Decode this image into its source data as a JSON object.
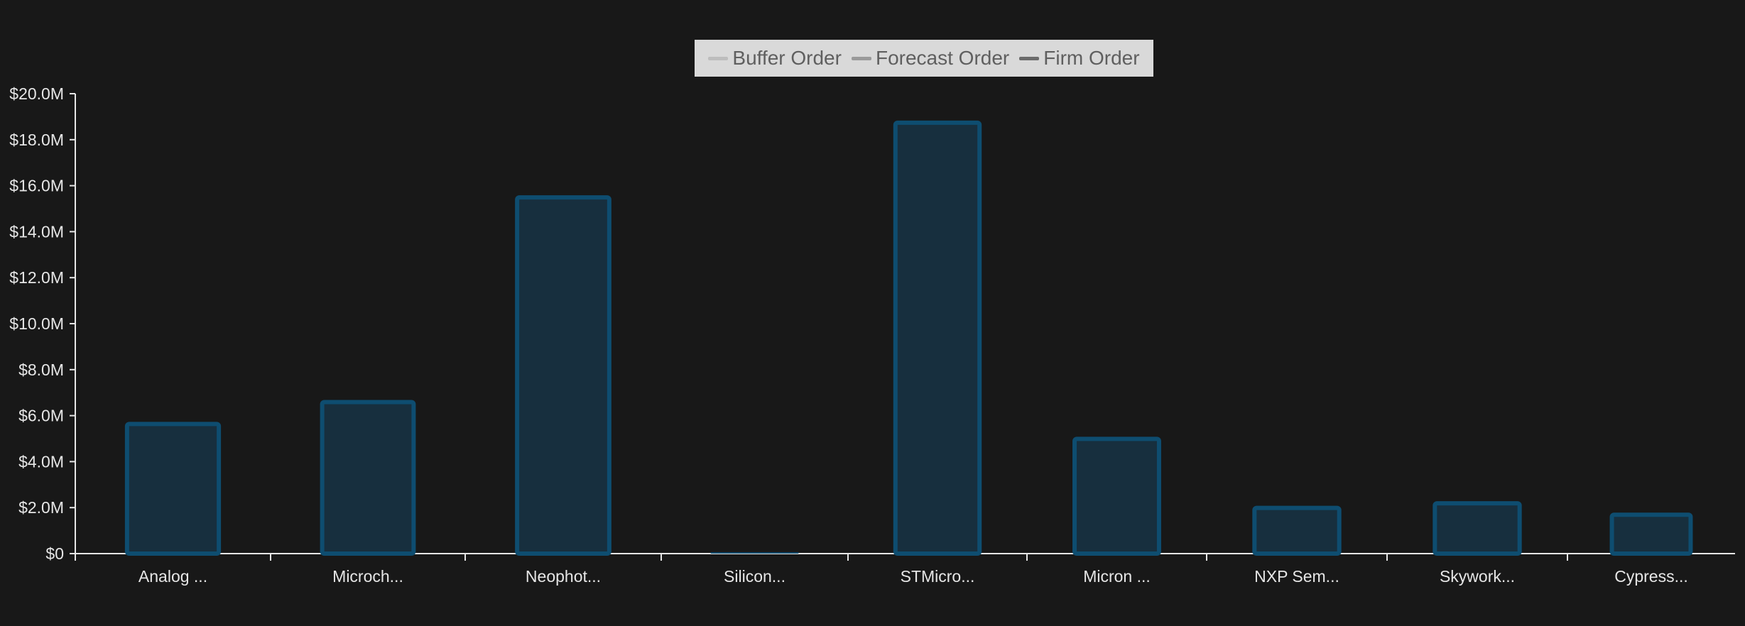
{
  "legend": {
    "items": [
      {
        "label": "Buffer Order",
        "color": "#bdbdbd"
      },
      {
        "label": "Forecast Order",
        "color": "#9a9a9a"
      },
      {
        "label": "Firm Order",
        "color": "#6b6b6b"
      }
    ]
  },
  "colors": {
    "background": "#181818",
    "bar_fill": "#172f3e",
    "bar_stroke": "#0e4d70",
    "axis": "#e6e6e6",
    "text": "#e6e6e6"
  },
  "chart_data": {
    "type": "bar",
    "stacked": true,
    "categories": [
      "Analog ...",
      "Microch...",
      "Neophot...",
      "Silicon...",
      "STMicro...",
      "Micron ...",
      "NXP Sem...",
      "Skywork...",
      "Cypress..."
    ],
    "series": [
      {
        "name": "Buffer Order",
        "values": [
          0,
          0,
          0,
          0,
          0,
          0,
          0,
          0,
          0
        ]
      },
      {
        "name": "Forecast Order",
        "values": [
          0,
          0,
          0,
          0,
          0,
          0,
          0,
          0,
          0
        ]
      },
      {
        "name": "Firm Order",
        "values": [
          5700000,
          6650000,
          15550000,
          0,
          18800000,
          5050000,
          2050000,
          2250000,
          1750000
        ]
      }
    ],
    "ylim": [
      0,
      20000000
    ],
    "yticks": [
      0,
      2000000,
      4000000,
      6000000,
      8000000,
      10000000,
      12000000,
      14000000,
      16000000,
      18000000,
      20000000
    ],
    "ytick_labels": [
      "$0",
      "$2.0M",
      "$4.0M",
      "$6.0M",
      "$8.0M",
      "$10.0M",
      "$12.0M",
      "$14.0M",
      "$16.0M",
      "$18.0M",
      "$20.0M"
    ],
    "legend_position": "top-center",
    "grid": false
  }
}
